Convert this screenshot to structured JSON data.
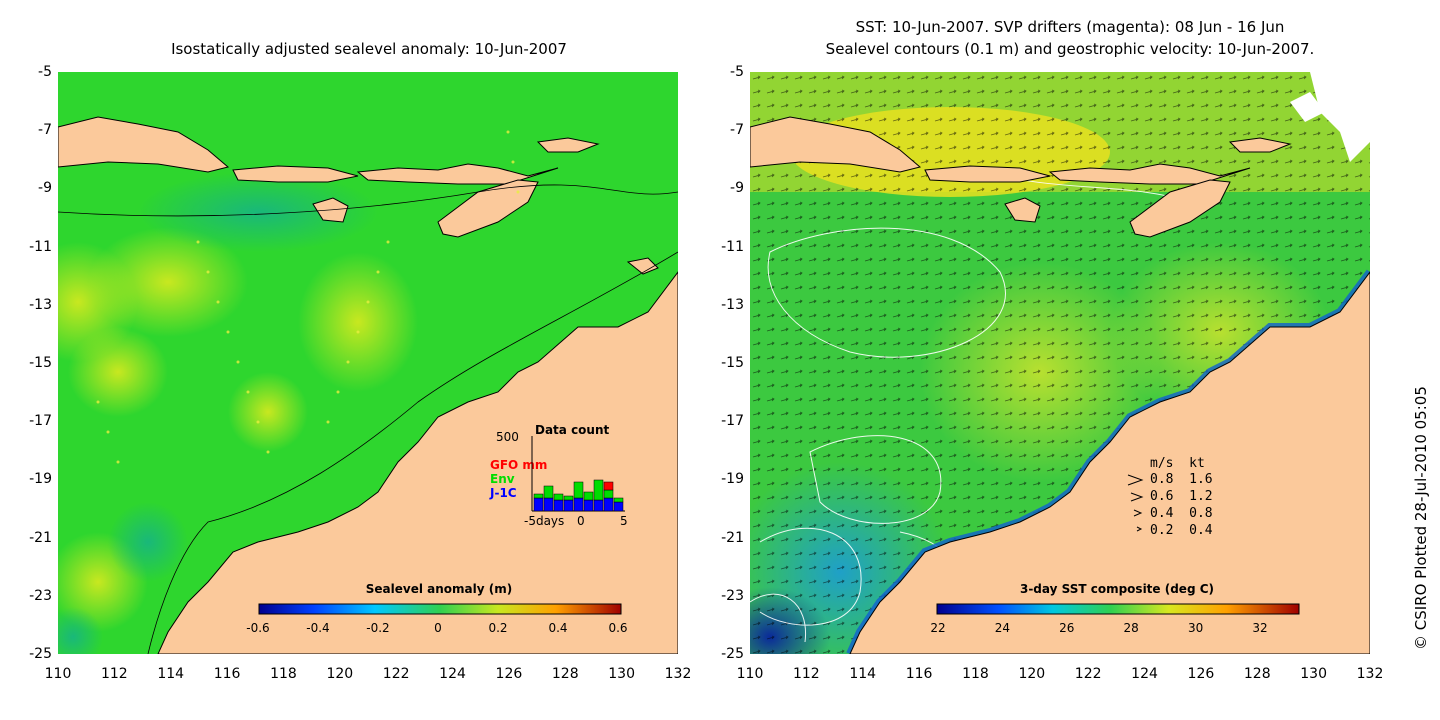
{
  "left_title": "Isostatically adjusted sealevel anomaly: 10-Jun-2007",
  "right_title_line1": "SST: 10-Jun-2007. SVP drifters (magenta): 08 Jun - 16 Jun",
  "right_title_line2": "Sealevel contours (0.1 m) and geostrophic velocity: 10-Jun-2007.",
  "y_ticks": [
    "-5",
    "-7",
    "-9",
    "-11",
    "-13",
    "-15",
    "-17",
    "-19",
    "-21",
    "-23",
    "-25"
  ],
  "x_ticks": [
    "110",
    "112",
    "114",
    "116",
    "118",
    "120",
    "122",
    "124",
    "126",
    "128",
    "130",
    "132"
  ],
  "left_colorbar": {
    "title": "Sealevel anomaly (m)",
    "ticks": [
      "-0.6",
      "-0.4",
      "-0.2",
      "0",
      "0.2",
      "0.4",
      "0.6"
    ]
  },
  "right_colorbar": {
    "title": "3-day SST composite (deg C)",
    "ticks": [
      "22",
      "24",
      "26",
      "28",
      "30",
      "32"
    ]
  },
  "data_count": {
    "title": "Data count",
    "max_label": "500",
    "series": [
      {
        "label": "GFO mm",
        "color": "#ff0000"
      },
      {
        "label": "Env",
        "color": "#00dd00"
      },
      {
        "label": "J-1C",
        "color": "#0000ff"
      }
    ],
    "x_labels": [
      "-5days",
      "0",
      "5"
    ]
  },
  "velocity_legend": {
    "header": "m/s  kt",
    "rows": [
      "0.8  1.6",
      "0.6  1.2",
      "0.4  0.8",
      "0.2  0.4"
    ]
  },
  "copyright": "© CSIRO Plotted 28-Jul-2010 05:05",
  "colors": {
    "land": "#fbc99b",
    "ocean_left": "#2ed62e",
    "ocean_right": "#3cc940",
    "coast": "#000000"
  }
}
